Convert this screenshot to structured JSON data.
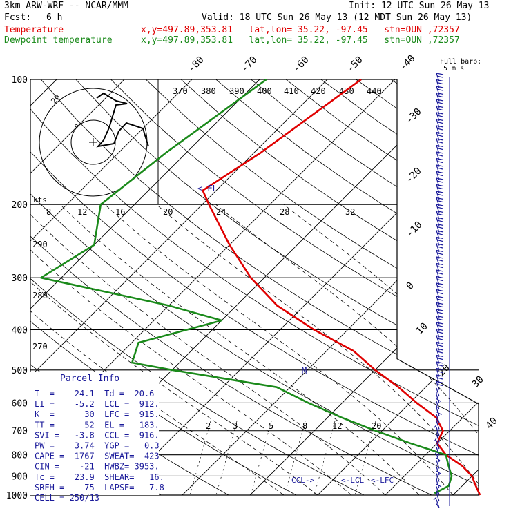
{
  "header": {
    "model": "3km ARW-WRF -- NCAR/MMM",
    "init": "Init: 12 UTC Sun 26 May 13",
    "fcst_label": "Fcst:",
    "fcst_value": "6 h",
    "valid": "Valid: 18 UTC Sun 26 May 13 (12 MDT Sun 26 May 13)",
    "temperature_label": "Temperature",
    "dewpoint_label": "Dewpoint temperature",
    "location_line": "x,y=497.89,353.81   lat,lon= 35.22, -97.45   stn=OUN ,72357",
    "colors": {
      "temperature": "#e00000",
      "dewpoint": "#1a8a1a",
      "text": "#000000",
      "info": "#1a1a9a"
    }
  },
  "chart_data": {
    "type": "line",
    "pressure_labels": [
      "100",
      "200",
      "300",
      "400",
      "500",
      "600",
      "700",
      "800",
      "900",
      "1000"
    ],
    "pressure_levels": [
      100,
      200,
      300,
      400,
      500,
      600,
      700,
      800,
      900,
      1000
    ],
    "skew_temp_labels": [
      "-80",
      "-70",
      "-60",
      "-50",
      "-40",
      "-30",
      "-20",
      "-10",
      "0",
      "10",
      "20",
      "30",
      "40"
    ],
    "theta_labels": [
      "370",
      "380",
      "390",
      "400",
      "410",
      "420",
      "430",
      "440"
    ],
    "lower_theta_labels": [
      "290",
      "280",
      "270"
    ],
    "mixing_ratio_labels": [
      "2",
      "3",
      "5",
      "8",
      "12",
      "20"
    ],
    "hodo_speed_labels": [
      "8",
      "12",
      "16",
      "20",
      "24",
      "28",
      "32"
    ],
    "hodo_unit": "kts",
    "barb_legend": "Full barb:",
    "barb_legend_unit": "5 m s",
    "el_label": "<-EL",
    "ccl_label": "CCL->",
    "lcl_label": "<-LCL",
    "lfc_label": "<-LFC",
    "m_label": "M",
    "hodo_ring_label": "20",
    "series": [
      {
        "name": "Temperature",
        "color": "#e00000",
        "points": [
          [
            100,
            -55
          ],
          [
            150,
            -59
          ],
          [
            185,
            -62
          ],
          [
            200,
            -59
          ],
          [
            250,
            -50
          ],
          [
            300,
            -42
          ],
          [
            350,
            -34
          ],
          [
            400,
            -25
          ],
          [
            450,
            -16
          ],
          [
            500,
            -10
          ],
          [
            550,
            -4
          ],
          [
            600,
            1
          ],
          [
            650,
            6
          ],
          [
            700,
            9
          ],
          [
            750,
            10
          ],
          [
            800,
            13
          ],
          [
            850,
            17
          ],
          [
            900,
            20
          ],
          [
            950,
            22
          ],
          [
            1000,
            24
          ]
        ]
      },
      {
        "name": "Dewpoint temperature",
        "color": "#1a8a1a",
        "points": [
          [
            100,
            -69
          ],
          [
            150,
            -73
          ],
          [
            200,
            -75
          ],
          [
            250,
            -70
          ],
          [
            300,
            -73
          ],
          [
            350,
            -50
          ],
          [
            380,
            -40
          ],
          [
            430,
            -49
          ],
          [
            480,
            -47
          ],
          [
            500,
            -40
          ],
          [
            550,
            -22
          ],
          [
            600,
            -15
          ],
          [
            650,
            -8
          ],
          [
            700,
            -1
          ],
          [
            750,
            6
          ],
          [
            800,
            13
          ],
          [
            850,
            15
          ],
          [
            900,
            17
          ],
          [
            950,
            18
          ],
          [
            990,
            17
          ]
        ]
      }
    ]
  },
  "parcel_info": {
    "title": "Parcel Info",
    "rows": [
      "T  =    24.1  Td =  20.6",
      "LI =    -5.2  LCL =  912.",
      "K  =      30  LFC =  915.",
      "TT =      52  EL =   183.",
      "SVI =   -3.8  CCL =  916.",
      "PW =    3.74  YGP =   0.3",
      "CAPE =  1767  SWEAT=  423",
      "CIN =    -21  HWBZ= 3953.",
      "Tc =    23.9  SHEAR=   16.",
      "SREH =    75  LAPSE=   7.8",
      "CELL = 250/13"
    ]
  }
}
